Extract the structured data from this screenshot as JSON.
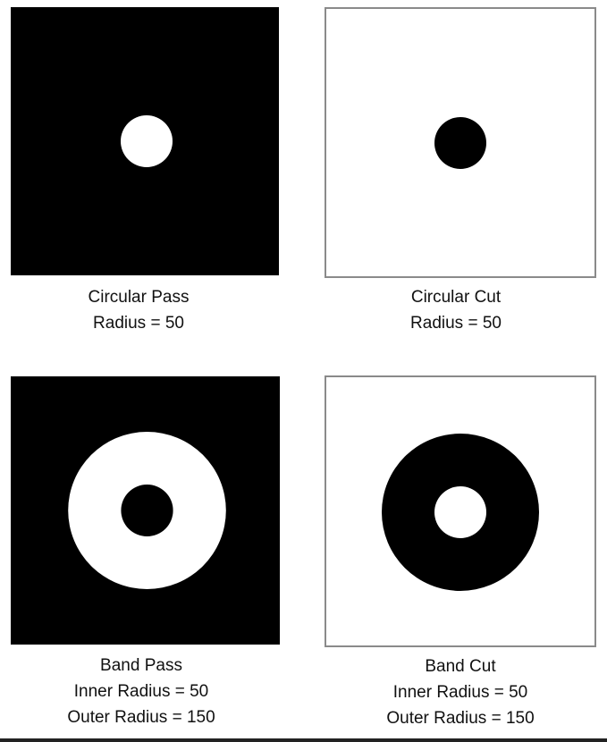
{
  "colors": {
    "filled": "#000000",
    "empty": "#ffffff",
    "frame": "#8a8a8a"
  },
  "panels": [
    {
      "name": "circular-pass",
      "caption": [
        "Circular Pass",
        "Radius = 50"
      ]
    },
    {
      "name": "circular-cut",
      "caption": [
        "Circular Cut",
        "Radius = 50"
      ]
    },
    {
      "name": "band-pass",
      "caption": [
        "Band Pass",
        "Inner Radius = 50",
        "Outer Radius = 150"
      ]
    },
    {
      "name": "band-cut",
      "caption": [
        "Band Cut",
        "Inner Radius = 50",
        "Outer Radius = 150"
      ]
    }
  ]
}
